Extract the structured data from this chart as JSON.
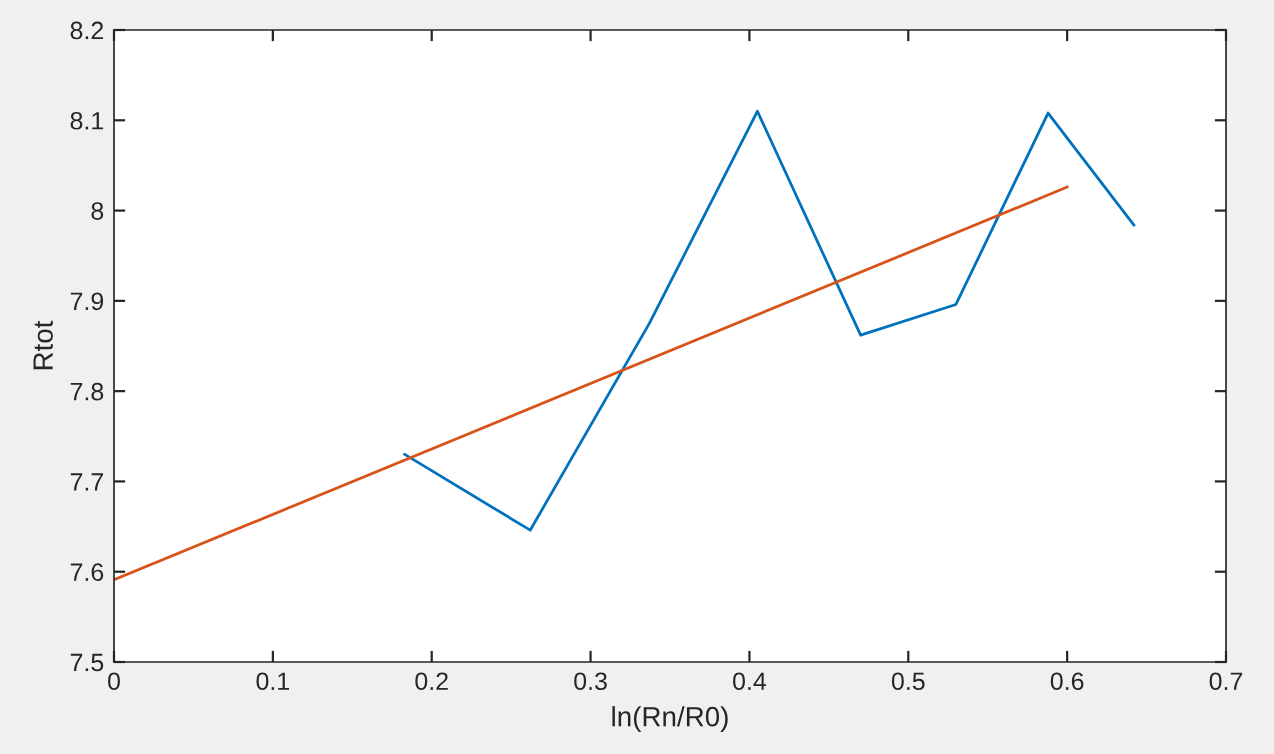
{
  "chart_data": {
    "type": "line",
    "xlabel": "ln(Rn/R0)",
    "ylabel": "Rtot",
    "series": [
      {
        "color": "#0072bd",
        "x": [
          0.183,
          0.262,
          0.337,
          0.405,
          0.47,
          0.53,
          0.588,
          0.642
        ],
        "values": [
          7.73,
          7.646,
          7.875,
          8.11,
          7.862,
          7.896,
          8.108,
          7.984
        ]
      },
      {
        "color": "#d95319",
        "x": [
          0,
          0.6
        ],
        "values": [
          7.591,
          8.026
        ]
      }
    ],
    "xlim": [
      0,
      0.7
    ],
    "xticks": [
      0,
      0.1,
      0.2,
      0.3,
      0.4,
      0.5,
      0.6,
      0.7
    ],
    "ylim": [
      7.5,
      8.2
    ],
    "yticks": [
      7.5,
      7.6,
      7.7,
      7.8,
      7.9,
      8,
      8.1,
      8.2
    ],
    "grid": false,
    "legend": false,
    "marker": "none",
    "line_style": "solid"
  }
}
